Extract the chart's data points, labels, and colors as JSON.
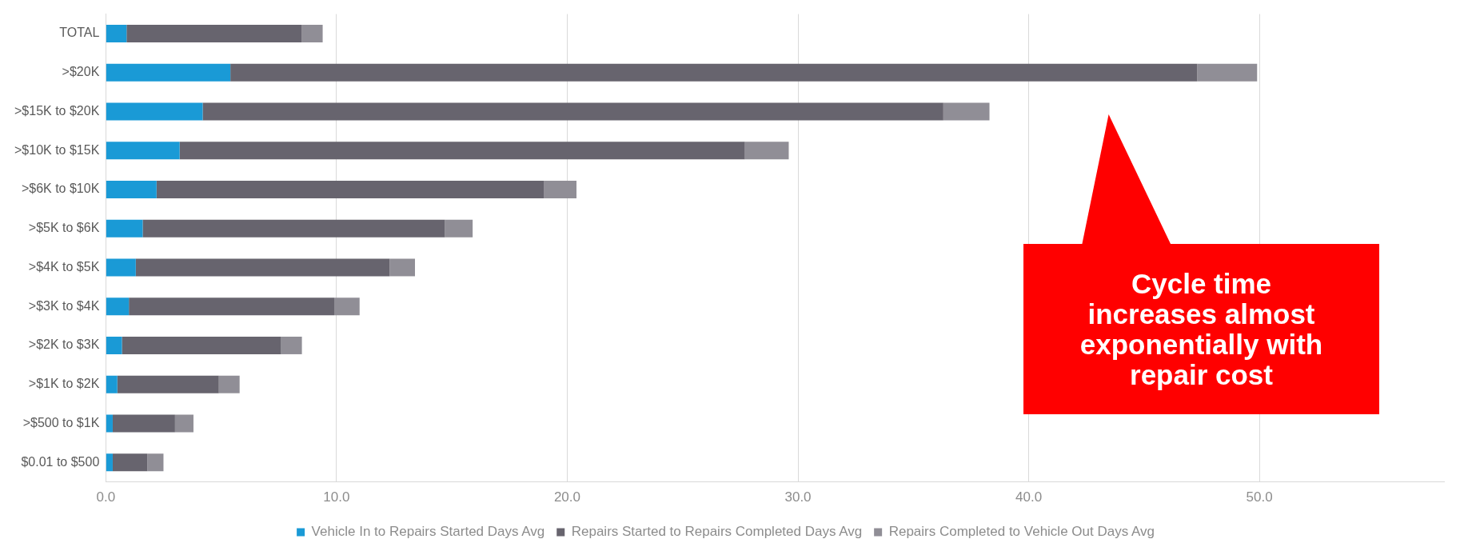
{
  "chart_data": {
    "type": "bar",
    "orientation": "horizontal",
    "stacked": true,
    "categories": [
      "TOTAL",
      ">$20K",
      ">$15K to $20K",
      ">$10K to $15K",
      ">$6K to $10K",
      ">$5K to $6K",
      ">$4K to $5K",
      ">$3K to $4K",
      ">$2K to $3K",
      ">$1K to $2K",
      ">$500 to $1K",
      "$0.01 to $500"
    ],
    "series": [
      {
        "name": "Vehicle In to Repairs Started Days Avg",
        "color": "#1a9ad6",
        "values": [
          0.9,
          5.4,
          4.2,
          3.2,
          2.2,
          1.6,
          1.3,
          1.0,
          0.7,
          0.5,
          0.3,
          0.3
        ]
      },
      {
        "name": "Repairs Started to Repairs Completed Days Avg",
        "color": "#67646e",
        "values": [
          7.6,
          41.9,
          32.1,
          24.5,
          16.8,
          13.1,
          11.0,
          8.9,
          6.9,
          4.4,
          2.7,
          1.5
        ]
      },
      {
        "name": "Repairs Completed to Vehicle Out Days Avg",
        "color": "#908e96",
        "values": [
          0.9,
          2.6,
          2.0,
          1.9,
          1.4,
          1.2,
          1.1,
          1.1,
          0.9,
          0.9,
          0.8,
          0.7
        ]
      }
    ],
    "xlim": [
      0,
      58
    ],
    "xticks": [
      {
        "value": 0,
        "label": "0.0"
      },
      {
        "value": 10,
        "label": "10.0"
      },
      {
        "value": 20,
        "label": "20.0"
      },
      {
        "value": 30,
        "label": "30.0"
      },
      {
        "value": 40,
        "label": "40.0"
      },
      {
        "value": 50,
        "label": "50.0"
      }
    ],
    "grid": "x",
    "legend": "bottom",
    "annotations": [
      "Cycle time increases almost exponentially with repair cost"
    ]
  }
}
